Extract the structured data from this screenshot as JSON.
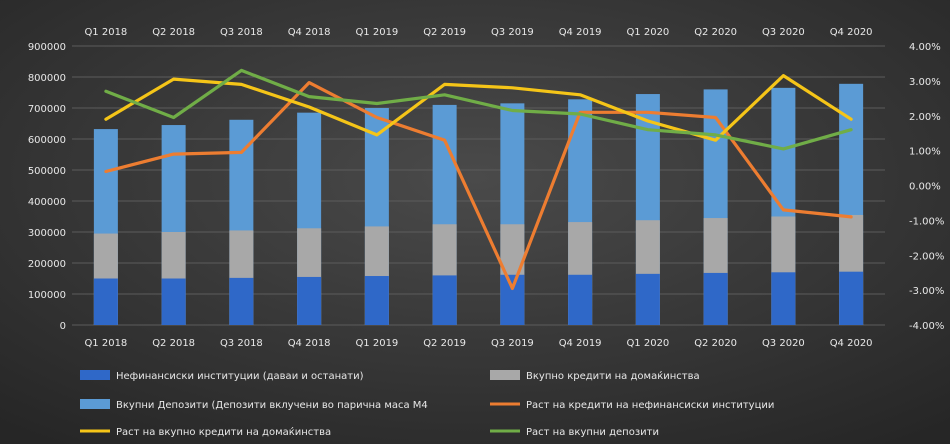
{
  "chart_data": {
    "type": "bar",
    "categories": [
      "Q1 2018",
      "Q2 2018",
      "Q3 2018",
      "Q4 2018",
      "Q1 2019",
      "Q2 2019",
      "Q3 2019",
      "Q4 2019",
      "Q1 2020",
      "Q2 2020",
      "Q3 2020",
      "Q4 2020"
    ],
    "y_left": {
      "ylim": [
        0,
        900000
      ],
      "ticks": [
        "0",
        "100000",
        "200000",
        "300000",
        "400000",
        "500000",
        "600000",
        "700000",
        "800000",
        "900000"
      ]
    },
    "y_right": {
      "ylim": [
        -4.0,
        4.0
      ],
      "ticks": [
        "-4.00%",
        "-3.00%",
        "-2.00%",
        "-1.00%",
        "0.00%",
        "1.00%",
        "2.00%",
        "3.00%",
        "4.00%"
      ]
    },
    "grid": true,
    "legend_position": "bottom",
    "bar_series": [
      {
        "name": "Нефинансиски институции (даваи и останати)",
        "color": "#2f68c8",
        "values": [
          150000,
          150000,
          152000,
          155000,
          158000,
          160000,
          162000,
          162000,
          165000,
          168000,
          170000,
          172000
        ]
      },
      {
        "name": "Вкупно кредити на домаќинства",
        "color": "#a8a8a8",
        "values": [
          295000,
          300000,
          305000,
          312000,
          318000,
          325000,
          325000,
          332000,
          338000,
          345000,
          350000,
          355000
        ]
      },
      {
        "name": "Вкупни Депозити (Депозити вклучени во парична маса М4",
        "color": "#5b9bd5",
        "values": [
          632000,
          645000,
          662000,
          685000,
          700000,
          710000,
          715000,
          728000,
          745000,
          760000,
          765000,
          778000
        ]
      }
    ],
    "line_series": [
      {
        "name": "Раст на кредити на нефинансиски институции",
        "color": "#ed7d31",
        "values": [
          0.4,
          0.9,
          0.95,
          2.95,
          1.95,
          1.3,
          -2.95,
          2.1,
          2.1,
          1.95,
          -0.7,
          -0.9
        ]
      },
      {
        "name": "Раст на вкупно кредити на домаќинства",
        "color": "#f5c518",
        "values": [
          1.9,
          3.05,
          2.9,
          2.25,
          1.45,
          2.9,
          2.8,
          2.6,
          1.85,
          1.3,
          3.15,
          1.9
        ]
      },
      {
        "name": "Раст на вкупни депозити",
        "color": "#70ad47",
        "values": [
          2.7,
          1.95,
          3.3,
          2.55,
          2.35,
          2.6,
          2.15,
          2.05,
          1.6,
          1.45,
          1.05,
          1.6
        ]
      }
    ]
  }
}
